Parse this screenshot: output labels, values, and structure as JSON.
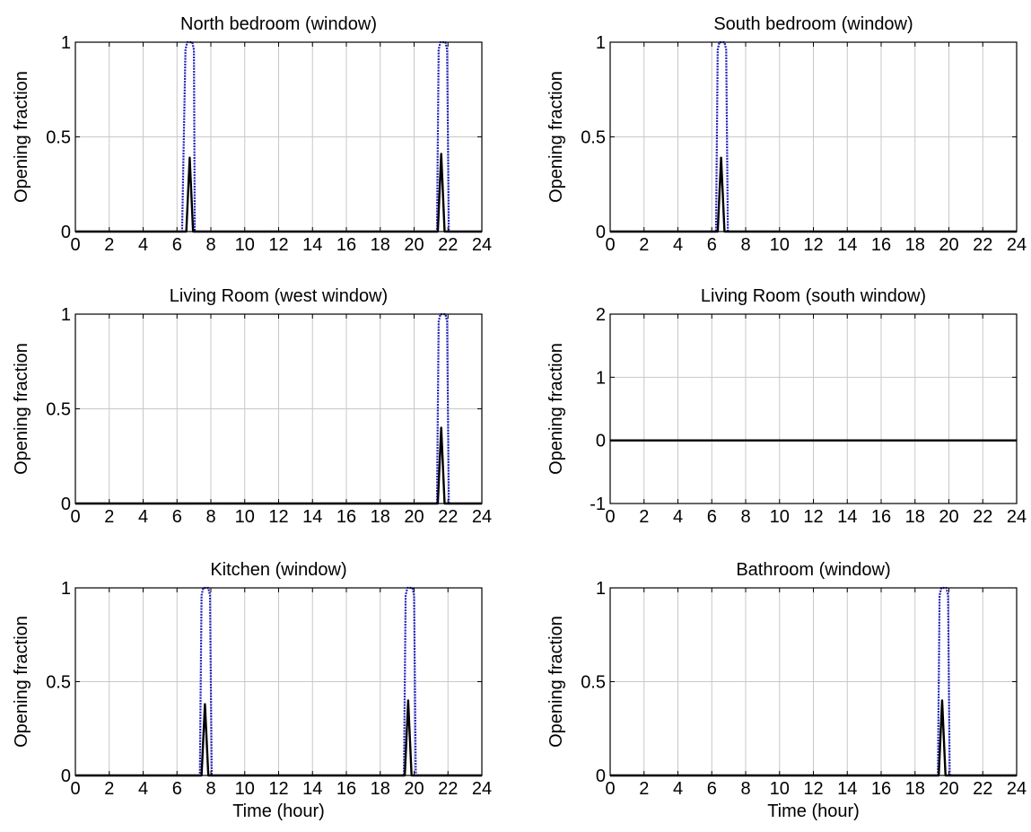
{
  "figure": {
    "x_ticks": [
      0,
      2,
      4,
      6,
      8,
      10,
      12,
      14,
      16,
      18,
      20,
      22,
      24
    ],
    "colors": {
      "envelope": "#1f1fbf",
      "actual": "#000000",
      "grid": "#c8c8c8",
      "axes": "#000000"
    }
  },
  "chart_data": [
    {
      "type": "line",
      "title": "North bedroom (window)",
      "xlabel": "",
      "ylabel": "Opening fraction",
      "xlim": [
        0,
        24
      ],
      "ylim": [
        0,
        1
      ],
      "yticks": [
        0,
        0.5,
        1
      ],
      "ytick_labels": [
        "0",
        "0.5",
        "1"
      ],
      "grid": true,
      "series": [
        {
          "style": "dotted",
          "color": "#1f1fbf",
          "x": [
            0,
            6.3,
            6.5,
            6.6,
            6.9,
            7.0,
            7.05,
            21.35,
            21.45,
            21.55,
            21.85,
            21.95,
            22.05,
            24
          ],
          "y": [
            0,
            0,
            0.96,
            1,
            1,
            0.96,
            0,
            0,
            0.96,
            1,
            1,
            0.96,
            0,
            0
          ]
        },
        {
          "style": "solid",
          "color": "#000000",
          "x": [
            0,
            6.55,
            6.75,
            6.95,
            21.4,
            21.6,
            21.8,
            24
          ],
          "y": [
            0,
            0,
            0.39,
            0,
            0,
            0.41,
            0,
            0
          ]
        }
      ]
    },
    {
      "type": "line",
      "title": "South bedroom (window)",
      "xlabel": "",
      "ylabel": "Opening fraction",
      "xlim": [
        0,
        24
      ],
      "ylim": [
        0,
        1
      ],
      "yticks": [
        0,
        0.5,
        1
      ],
      "ytick_labels": [
        "0",
        "0.5",
        "1"
      ],
      "grid": true,
      "series": [
        {
          "style": "dotted",
          "color": "#1f1fbf",
          "x": [
            0,
            6.25,
            6.35,
            6.45,
            6.75,
            6.85,
            6.95,
            24
          ],
          "y": [
            0,
            0,
            0.96,
            1,
            1,
            0.96,
            0,
            0
          ]
        },
        {
          "style": "solid",
          "color": "#000000",
          "x": [
            0,
            6.35,
            6.55,
            6.75,
            24
          ],
          "y": [
            0,
            0,
            0.39,
            0,
            0
          ]
        }
      ]
    },
    {
      "type": "line",
      "title": "Living Room (west window)",
      "xlabel": "",
      "ylabel": "Opening fraction",
      "xlim": [
        0,
        24
      ],
      "ylim": [
        0,
        1
      ],
      "yticks": [
        0,
        0.5,
        1
      ],
      "ytick_labels": [
        "0",
        "0.5",
        "1"
      ],
      "grid": true,
      "series": [
        {
          "style": "dotted",
          "color": "#1f1fbf",
          "x": [
            0,
            21.35,
            21.45,
            21.55,
            21.85,
            21.95,
            22.05,
            24
          ],
          "y": [
            0,
            0,
            0.96,
            1,
            1,
            0.96,
            0,
            0
          ]
        },
        {
          "style": "solid",
          "color": "#000000",
          "x": [
            0,
            21.4,
            21.6,
            21.8,
            24
          ],
          "y": [
            0,
            0,
            0.4,
            0,
            0
          ]
        }
      ]
    },
    {
      "type": "line",
      "title": "Living Room (south window)",
      "xlabel": "",
      "ylabel": "Opening fraction",
      "xlim": [
        0,
        24
      ],
      "ylim": [
        -1,
        2
      ],
      "yticks": [
        -1,
        0,
        1,
        2
      ],
      "ytick_labels": [
        "-1",
        "0",
        "1",
        "2"
      ],
      "grid": true,
      "series": [
        {
          "style": "dotted",
          "color": "#1f1fbf",
          "x": [
            0,
            24
          ],
          "y": [
            0,
            0
          ]
        },
        {
          "style": "solid",
          "color": "#000000",
          "x": [
            0,
            24
          ],
          "y": [
            0,
            0
          ]
        }
      ]
    },
    {
      "type": "line",
      "title": "Kitchen (window)",
      "xlabel": "Time (hour)",
      "ylabel": "Opening fraction",
      "xlim": [
        0,
        24
      ],
      "ylim": [
        0,
        1
      ],
      "yticks": [
        0,
        0.5,
        1
      ],
      "ytick_labels": [
        "0",
        "0.5",
        "1"
      ],
      "grid": true,
      "series": [
        {
          "style": "dotted",
          "color": "#1f1fbf",
          "x": [
            0,
            7.35,
            7.45,
            7.55,
            7.85,
            7.95,
            8.05,
            19.4,
            19.5,
            19.6,
            19.9,
            20.0,
            20.1,
            24
          ],
          "y": [
            0,
            0,
            0.96,
            1,
            1,
            0.96,
            0,
            0,
            0.96,
            1,
            1,
            0.96,
            0,
            0
          ]
        },
        {
          "style": "solid",
          "color": "#000000",
          "x": [
            0,
            7.45,
            7.65,
            7.85,
            19.45,
            19.65,
            19.85,
            24
          ],
          "y": [
            0,
            0,
            0.38,
            0,
            0,
            0.4,
            0,
            0
          ]
        }
      ]
    },
    {
      "type": "line",
      "title": "Bathroom (window)",
      "xlabel": "Time (hour)",
      "ylabel": "Opening fraction",
      "xlim": [
        0,
        24
      ],
      "ylim": [
        0,
        1
      ],
      "yticks": [
        0,
        0.5,
        1
      ],
      "ytick_labels": [
        "0",
        "0.5",
        "1"
      ],
      "grid": true,
      "series": [
        {
          "style": "dotted",
          "color": "#1f1fbf",
          "x": [
            0,
            19.35,
            19.45,
            19.55,
            19.85,
            19.95,
            20.05,
            24
          ],
          "y": [
            0,
            0,
            0.96,
            1,
            1,
            0.96,
            0,
            0
          ]
        },
        {
          "style": "solid",
          "color": "#000000",
          "x": [
            0,
            19.4,
            19.6,
            19.8,
            24
          ],
          "y": [
            0,
            0,
            0.4,
            0,
            0
          ]
        }
      ]
    }
  ]
}
